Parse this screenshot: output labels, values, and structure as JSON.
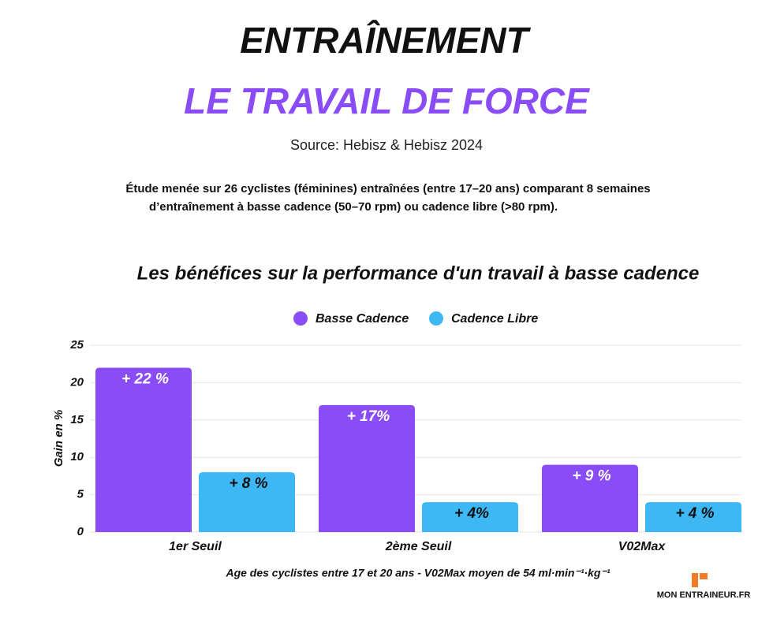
{
  "header": {
    "title": "ENTRAÎNEMENT",
    "subtitle": "LE TRAVAIL DE FORCE",
    "source": "Source: Hebisz & Hebisz 2024",
    "description": [
      "Étude menée sur 26 cyclistes (féminines) entraînées (entre 17–20 ans) comparant 8 semaines",
      "d’entraînement à basse cadence (50–70 rpm) ou cadence libre (>80 rpm)."
    ]
  },
  "chart_data": {
    "type": "bar",
    "title": "Les bénéfices sur la performance d'un travail à basse cadence",
    "categories": [
      "1er Seuil",
      "2ème Seuil",
      "V02Max"
    ],
    "series": [
      {
        "name": "Basse Cadence",
        "color": "#8a4cf7",
        "values": [
          22,
          17,
          9
        ],
        "value_labels": [
          "+ 22 %",
          "+ 17%",
          "+ 9 %"
        ]
      },
      {
        "name": "Cadence Libre",
        "color": "#3db8f5",
        "values": [
          8,
          4,
          4
        ],
        "value_labels": [
          "+ 8 %",
          "+ 4%",
          "+ 4 %"
        ]
      }
    ],
    "ylabel": "Gain en %",
    "xlabel": "Age des cyclistes entre 17 et 20 ans - V02Max moyen de 54 ml·min⁻¹·kg⁻¹",
    "ylim": [
      0,
      25
    ],
    "yticks": [
      0,
      5,
      10,
      15,
      20,
      25
    ],
    "grid": true,
    "legend": "top"
  },
  "footer": {
    "brand": "MON ENTRAINEUR.FR"
  }
}
